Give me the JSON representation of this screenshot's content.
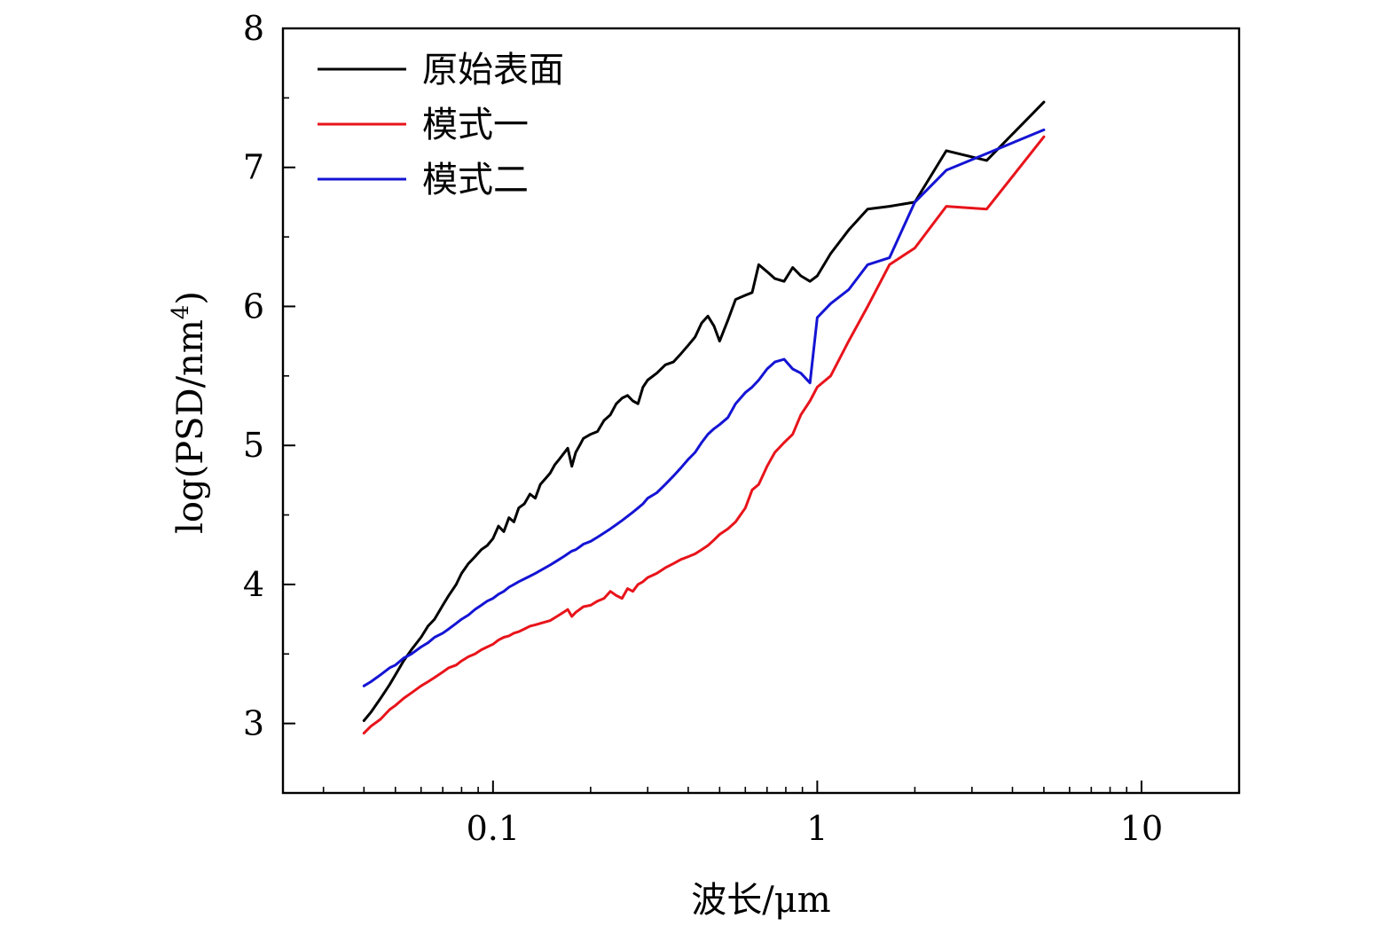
{
  "chart_data": {
    "type": "line",
    "title": "",
    "xlabel": "波长/μm",
    "ylabel": "log(PSD/nm",
    "ylabel_sup": "4",
    "ylabel_close": ")",
    "xscale": "log",
    "xlim": [
      0.0225,
      20
    ],
    "ylim": [
      2.5,
      8
    ],
    "x_ticks": [
      0.1,
      1,
      10
    ],
    "x_tick_labels": [
      "0.1",
      "1",
      "10"
    ],
    "y_ticks": [
      3,
      4,
      5,
      6,
      7,
      8
    ],
    "y_tick_labels": [
      "3",
      "4",
      "5",
      "6",
      "7",
      "8"
    ],
    "grid": false,
    "legend_position": "top-left",
    "series": [
      {
        "name": "原始表面",
        "color": "#000000",
        "x": [
          0.04,
          0.042,
          0.045,
          0.048,
          0.05,
          0.053,
          0.056,
          0.06,
          0.063,
          0.066,
          0.07,
          0.073,
          0.077,
          0.08,
          0.084,
          0.088,
          0.092,
          0.096,
          0.1,
          0.104,
          0.108,
          0.112,
          0.116,
          0.12,
          0.125,
          0.13,
          0.135,
          0.14,
          0.145,
          0.15,
          0.155,
          0.16,
          0.165,
          0.17,
          0.175,
          0.18,
          0.185,
          0.19,
          0.2,
          0.21,
          0.22,
          0.23,
          0.24,
          0.25,
          0.26,
          0.27,
          0.28,
          0.29,
          0.3,
          0.32,
          0.34,
          0.36,
          0.38,
          0.4,
          0.42,
          0.44,
          0.46,
          0.48,
          0.5,
          0.53,
          0.56,
          0.6,
          0.63,
          0.66,
          0.7,
          0.74,
          0.79,
          0.84,
          0.89,
          0.95,
          1.0,
          1.1,
          1.25,
          1.43,
          1.67,
          2.0,
          2.5,
          3.33,
          5.0
        ],
        "values": [
          3.02,
          3.08,
          3.18,
          3.28,
          3.35,
          3.45,
          3.53,
          3.62,
          3.7,
          3.75,
          3.85,
          3.92,
          4.0,
          4.08,
          4.15,
          4.2,
          4.25,
          4.28,
          4.33,
          4.42,
          4.38,
          4.48,
          4.45,
          4.55,
          4.58,
          4.65,
          4.62,
          4.72,
          4.76,
          4.8,
          4.86,
          4.9,
          4.94,
          4.98,
          4.85,
          4.95,
          5.0,
          5.05,
          5.08,
          5.1,
          5.18,
          5.22,
          5.3,
          5.34,
          5.36,
          5.32,
          5.3,
          5.42,
          5.47,
          5.52,
          5.58,
          5.6,
          5.66,
          5.72,
          5.78,
          5.88,
          5.93,
          5.86,
          5.75,
          5.9,
          6.05,
          6.08,
          6.1,
          6.3,
          6.25,
          6.2,
          6.18,
          6.28,
          6.22,
          6.18,
          6.22,
          6.38,
          6.55,
          6.7,
          6.72,
          6.75,
          7.12,
          7.05,
          7.47
        ]
      },
      {
        "name": "模式一",
        "color": "#e8141b",
        "x": [
          0.04,
          0.042,
          0.045,
          0.048,
          0.05,
          0.053,
          0.056,
          0.06,
          0.063,
          0.066,
          0.07,
          0.073,
          0.077,
          0.08,
          0.084,
          0.088,
          0.092,
          0.096,
          0.1,
          0.104,
          0.108,
          0.112,
          0.116,
          0.12,
          0.125,
          0.13,
          0.135,
          0.14,
          0.145,
          0.15,
          0.155,
          0.16,
          0.165,
          0.17,
          0.175,
          0.18,
          0.185,
          0.19,
          0.2,
          0.21,
          0.22,
          0.23,
          0.24,
          0.25,
          0.26,
          0.27,
          0.28,
          0.29,
          0.3,
          0.32,
          0.34,
          0.36,
          0.38,
          0.4,
          0.42,
          0.44,
          0.46,
          0.48,
          0.5,
          0.53,
          0.56,
          0.6,
          0.63,
          0.66,
          0.7,
          0.74,
          0.79,
          0.84,
          0.89,
          0.95,
          1.0,
          1.1,
          1.25,
          1.43,
          1.67,
          2.0,
          2.5,
          3.33,
          5.0
        ],
        "values": [
          2.93,
          2.98,
          3.03,
          3.1,
          3.13,
          3.18,
          3.22,
          3.27,
          3.3,
          3.33,
          3.37,
          3.4,
          3.42,
          3.45,
          3.48,
          3.5,
          3.53,
          3.55,
          3.57,
          3.6,
          3.62,
          3.63,
          3.65,
          3.66,
          3.68,
          3.7,
          3.71,
          3.72,
          3.73,
          3.74,
          3.76,
          3.78,
          3.8,
          3.82,
          3.77,
          3.8,
          3.82,
          3.84,
          3.85,
          3.88,
          3.9,
          3.95,
          3.92,
          3.9,
          3.97,
          3.95,
          4.0,
          4.02,
          4.05,
          4.08,
          4.12,
          4.15,
          4.18,
          4.2,
          4.22,
          4.25,
          4.28,
          4.32,
          4.36,
          4.4,
          4.45,
          4.55,
          4.68,
          4.72,
          4.85,
          4.95,
          5.02,
          5.08,
          5.22,
          5.32,
          5.42,
          5.5,
          5.75,
          6.0,
          6.3,
          6.42,
          6.72,
          6.7,
          7.22
        ]
      },
      {
        "name": "模式二",
        "color": "#1414d4",
        "x": [
          0.04,
          0.042,
          0.045,
          0.048,
          0.05,
          0.053,
          0.056,
          0.06,
          0.063,
          0.066,
          0.07,
          0.073,
          0.077,
          0.08,
          0.084,
          0.088,
          0.092,
          0.096,
          0.1,
          0.104,
          0.108,
          0.112,
          0.116,
          0.12,
          0.125,
          0.13,
          0.135,
          0.14,
          0.145,
          0.15,
          0.155,
          0.16,
          0.165,
          0.17,
          0.175,
          0.18,
          0.185,
          0.19,
          0.2,
          0.21,
          0.22,
          0.23,
          0.24,
          0.25,
          0.26,
          0.27,
          0.28,
          0.29,
          0.3,
          0.32,
          0.34,
          0.36,
          0.38,
          0.4,
          0.42,
          0.44,
          0.46,
          0.48,
          0.5,
          0.53,
          0.56,
          0.6,
          0.63,
          0.66,
          0.7,
          0.74,
          0.79,
          0.84,
          0.89,
          0.95,
          1.0,
          1.1,
          1.25,
          1.43,
          1.67,
          2.0,
          2.5,
          3.33,
          5.0
        ],
        "values": [
          3.27,
          3.3,
          3.35,
          3.4,
          3.42,
          3.47,
          3.5,
          3.55,
          3.58,
          3.62,
          3.65,
          3.68,
          3.72,
          3.75,
          3.78,
          3.82,
          3.85,
          3.88,
          3.9,
          3.93,
          3.95,
          3.98,
          4.0,
          4.02,
          4.04,
          4.06,
          4.08,
          4.1,
          4.12,
          4.14,
          4.16,
          4.18,
          4.2,
          4.22,
          4.24,
          4.25,
          4.27,
          4.29,
          4.31,
          4.34,
          4.37,
          4.4,
          4.43,
          4.46,
          4.49,
          4.52,
          4.55,
          4.58,
          4.62,
          4.66,
          4.72,
          4.78,
          4.84,
          4.9,
          4.95,
          5.02,
          5.08,
          5.12,
          5.15,
          5.2,
          5.3,
          5.38,
          5.42,
          5.47,
          5.55,
          5.6,
          5.62,
          5.55,
          5.52,
          5.45,
          5.92,
          6.02,
          6.12,
          6.3,
          6.35,
          6.75,
          6.98,
          7.1,
          7.27
        ]
      }
    ]
  }
}
